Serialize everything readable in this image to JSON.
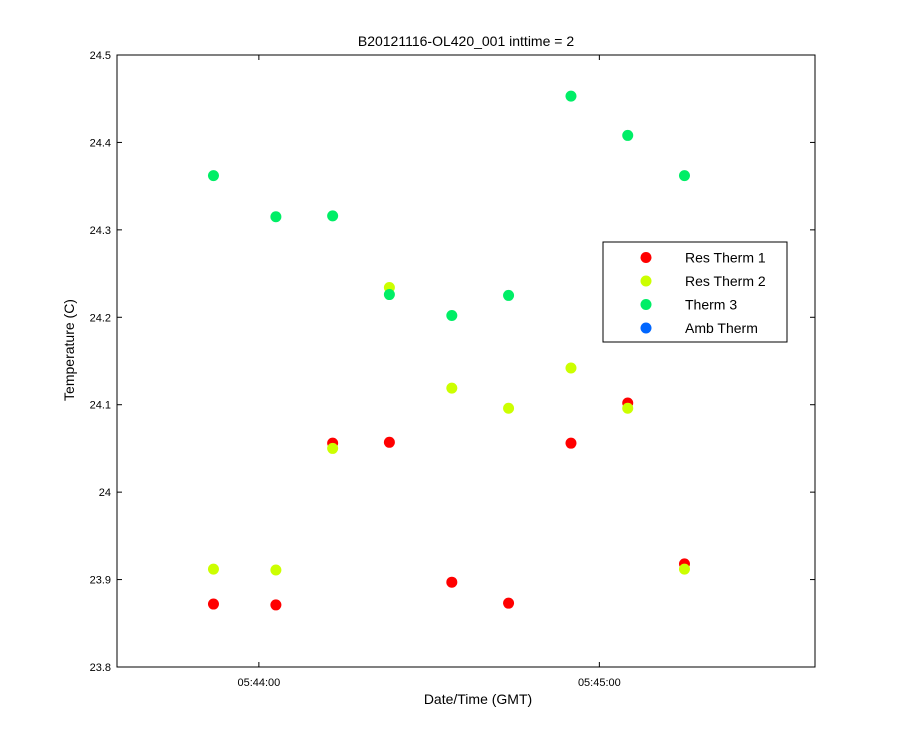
{
  "chart_data": {
    "type": "scatter",
    "title": "B20121116-OL420_001 inttime = 2",
    "xlabel": "Date/Time (GMT)",
    "ylabel": "Temperature (C)",
    "xlim": [
      "05:43:35",
      "05:45:38"
    ],
    "ylim": [
      23.8,
      24.5
    ],
    "x_ticks": [
      "05:44:00",
      "05:45:00"
    ],
    "y_ticks": [
      "23.8",
      "23.9",
      "24",
      "24.1",
      "24.2",
      "24.3",
      "24.4",
      "24.5"
    ],
    "grid": false,
    "legend_position": "right",
    "series": [
      {
        "name": "Res Therm 1",
        "color": "#ff0000",
        "points": [
          {
            "x": "05:43:52",
            "y": 23.872
          },
          {
            "x": "05:44:03",
            "y": 23.871
          },
          {
            "x": "05:44:13",
            "y": 24.056
          },
          {
            "x": "05:44:23",
            "y": 24.057
          },
          {
            "x": "05:44:34",
            "y": 23.897
          },
          {
            "x": "05:44:44",
            "y": 23.873
          },
          {
            "x": "05:44:55",
            "y": 24.056
          },
          {
            "x": "05:45:05",
            "y": 24.102
          },
          {
            "x": "05:45:15",
            "y": 23.918
          }
        ]
      },
      {
        "name": "Res Therm 2",
        "color": "#ccff00",
        "points": [
          {
            "x": "05:43:52",
            "y": 23.912
          },
          {
            "x": "05:44:03",
            "y": 23.911
          },
          {
            "x": "05:44:13",
            "y": 24.05
          },
          {
            "x": "05:44:23",
            "y": 24.234
          },
          {
            "x": "05:44:34",
            "y": 24.119
          },
          {
            "x": "05:44:44",
            "y": 24.096
          },
          {
            "x": "05:44:55",
            "y": 24.142
          },
          {
            "x": "05:45:05",
            "y": 24.096
          },
          {
            "x": "05:45:15",
            "y": 23.912
          }
        ]
      },
      {
        "name": "Therm 3",
        "color": "#00ee66",
        "points": [
          {
            "x": "05:43:52",
            "y": 24.362
          },
          {
            "x": "05:44:03",
            "y": 24.315
          },
          {
            "x": "05:44:13",
            "y": 24.316
          },
          {
            "x": "05:44:23",
            "y": 24.226
          },
          {
            "x": "05:44:34",
            "y": 24.202
          },
          {
            "x": "05:44:44",
            "y": 24.225
          },
          {
            "x": "05:44:55",
            "y": 24.453
          },
          {
            "x": "05:45:05",
            "y": 24.408
          },
          {
            "x": "05:45:15",
            "y": 24.362
          }
        ]
      },
      {
        "name": "Amb Therm",
        "color": "#0066ff",
        "points": []
      }
    ]
  }
}
